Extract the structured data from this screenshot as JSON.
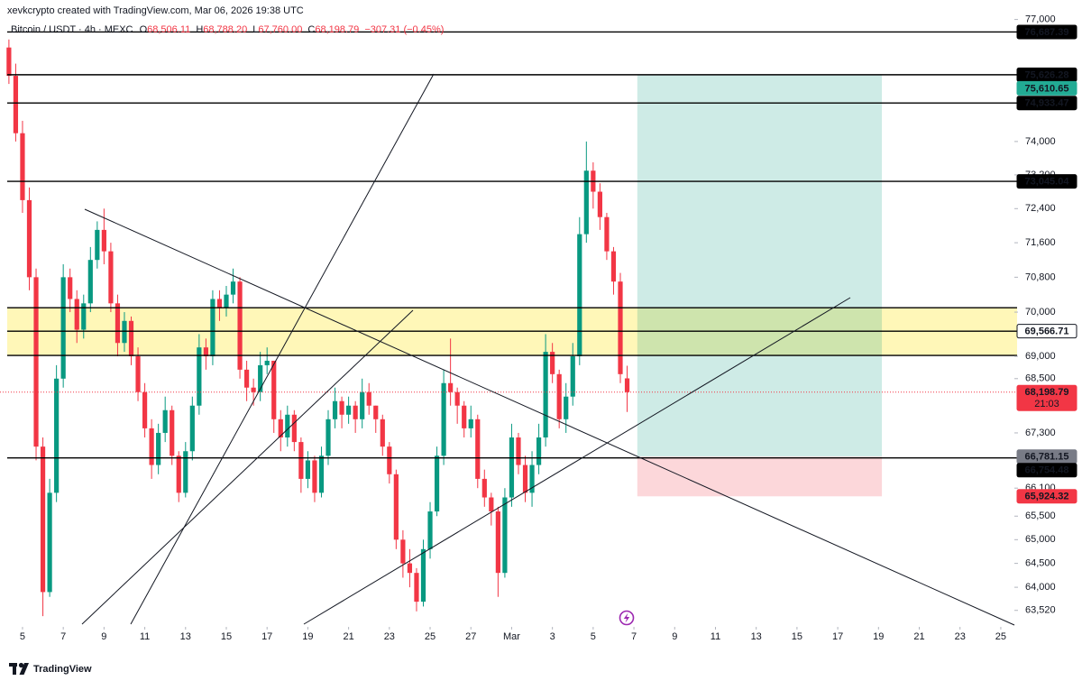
{
  "header": "xevkcrypto created with TradingView.com, Mar 06, 2026 19:38 UTC",
  "brand": "TradingView",
  "chart_data": {
    "type": "candlestick",
    "legend": {
      "symbol": "Bitcoin / USDT · 4h · MEXC",
      "ohlc": [
        {
          "key": "O",
          "value": "68,506.11"
        },
        {
          "key": "H",
          "value": "68,788.20"
        },
        {
          "key": "L",
          "value": "67,760.00"
        },
        {
          "key": "C",
          "value": "68,198.79"
        }
      ],
      "change": "−307.31 (−0.45%)"
    },
    "colors": {
      "up": "#089981",
      "down": "#f23645"
    },
    "log": true,
    "xlim": [
      -26.5,
      1168
    ],
    "ylim": [
      63180,
      77490
    ],
    "xticks": [
      {
        "value": 0,
        "label": "5"
      },
      {
        "value": 48,
        "label": "7"
      },
      {
        "value": 96,
        "label": "9"
      },
      {
        "value": 144,
        "label": "11"
      },
      {
        "value": 192,
        "label": "13"
      },
      {
        "value": 240,
        "label": "15"
      },
      {
        "value": 288,
        "label": "17"
      },
      {
        "value": 336,
        "label": "19"
      },
      {
        "value": 384,
        "label": "21"
      },
      {
        "value": 432,
        "label": "23"
      },
      {
        "value": 480,
        "label": "25"
      },
      {
        "value": 528,
        "label": "27"
      },
      {
        "value": 576,
        "label": "Mar"
      },
      {
        "value": 624,
        "label": "3"
      },
      {
        "value": 672,
        "label": "5"
      },
      {
        "value": 720,
        "label": "7"
      },
      {
        "value": 768,
        "label": "9"
      },
      {
        "value": 816,
        "label": "11"
      },
      {
        "value": 864,
        "label": "13"
      },
      {
        "value": 912,
        "label": "15"
      },
      {
        "value": 960,
        "label": "17"
      },
      {
        "value": 1008,
        "label": "19"
      },
      {
        "value": 1056,
        "label": "21"
      },
      {
        "value": 1104,
        "label": "23"
      },
      {
        "value": 1152,
        "label": "25"
      }
    ],
    "yticks": [
      {
        "value": 77000,
        "label": "77,000"
      },
      {
        "value": 74000,
        "label": "74,000"
      },
      {
        "value": 73200,
        "label": "73,200"
      },
      {
        "value": 72400,
        "label": "72,400"
      },
      {
        "value": 71600,
        "label": "71,600"
      },
      {
        "value": 70800,
        "label": "70,800"
      },
      {
        "value": 70000,
        "label": "70,000"
      },
      {
        "value": 69000,
        "label": "69,000"
      },
      {
        "value": 68500,
        "label": "68,500"
      },
      {
        "value": 67300,
        "label": "67,300"
      },
      {
        "value": 66100,
        "label": "66,100"
      },
      {
        "value": 65500,
        "label": "65,500"
      },
      {
        "value": 65000,
        "label": "65,000"
      },
      {
        "value": 64500,
        "label": "64,500"
      },
      {
        "value": 64000,
        "label": "64,000"
      },
      {
        "value": 63520,
        "label": "63,520"
      }
    ],
    "x": [
      -16,
      -8,
      0,
      8,
      16,
      24,
      32,
      40,
      48,
      56,
      64,
      72,
      80,
      88,
      96,
      104,
      112,
      120,
      128,
      136,
      144,
      152,
      160,
      168,
      176,
      184,
      192,
      200,
      208,
      216,
      224,
      232,
      240,
      248,
      256,
      264,
      272,
      280,
      288,
      296,
      304,
      312,
      320,
      328,
      336,
      344,
      352,
      360,
      368,
      376,
      384,
      392,
      400,
      408,
      416,
      424,
      432,
      440,
      448,
      456,
      464,
      472,
      480,
      488,
      496,
      504,
      512,
      520,
      528,
      536,
      544,
      552,
      560,
      568,
      576,
      584,
      592,
      600,
      608,
      616,
      624,
      632,
      640,
      648,
      656,
      664,
      672,
      680,
      688,
      696,
      704,
      712
    ],
    "open": [
      76300,
      75600,
      74200,
      72600,
      70800,
      67000,
      63900,
      66000,
      68500,
      70800,
      70300,
      69600,
      70200,
      71200,
      71900,
      71400,
      70200,
      69300,
      69800,
      69000,
      68200,
      67400,
      66600,
      67300,
      67800,
      66800,
      66000,
      66900,
      67900,
      69200,
      69000,
      70300,
      70100,
      70400,
      70700,
      68700,
      68300,
      68200,
      68800,
      68900,
      67600,
      67200,
      67700,
      67100,
      66300,
      66700,
      66000,
      66800,
      67600,
      68000,
      67700,
      67900,
      67600,
      68200,
      67900,
      67600,
      67000,
      66400,
      65000,
      64500,
      64300,
      63700,
      64800,
      65600,
      66800,
      68400,
      68200,
      67900,
      67400,
      67600,
      66300,
      65900,
      65600,
      64300,
      65900,
      67200,
      66600,
      66000,
      66600,
      67200,
      69100,
      68600,
      67600,
      68100,
      69000,
      71800,
      73300,
      72800,
      72200,
      71400,
      70700,
      68506.11
    ],
    "high": [
      76500,
      75900,
      74500,
      72900,
      71000,
      67200,
      66300,
      68800,
      71100,
      71000,
      70500,
      70400,
      71500,
      72100,
      72400,
      71600,
      70400,
      70000,
      69900,
      69200,
      68400,
      67600,
      67500,
      68100,
      67900,
      66900,
      67100,
      68100,
      69500,
      69400,
      70500,
      70500,
      70600,
      71000,
      70800,
      68900,
      68500,
      69100,
      69200,
      68900,
      67800,
      67900,
      67800,
      67200,
      66900,
      66800,
      67000,
      67800,
      68300,
      68100,
      68100,
      68000,
      68500,
      68400,
      67900,
      67700,
      67100,
      66500,
      65200,
      64800,
      64400,
      65000,
      65800,
      67000,
      68700,
      69400,
      68300,
      68000,
      67900,
      67700,
      66500,
      66000,
      65700,
      66100,
      67500,
      67300,
      66800,
      66900,
      67500,
      69500,
      69300,
      68700,
      68400,
      69300,
      72200,
      74000,
      73500,
      73000,
      72300,
      71500,
      70900,
      68788.2
    ],
    "low": [
      75400,
      74000,
      72300,
      70500,
      66700,
      63400,
      63800,
      65800,
      68300,
      70000,
      69300,
      69400,
      70000,
      71000,
      71100,
      70000,
      69000,
      69100,
      68800,
      68000,
      67200,
      66300,
      66400,
      67100,
      66600,
      65800,
      65900,
      66700,
      67700,
      68700,
      68800,
      69800,
      69900,
      70200,
      68500,
      68000,
      67900,
      68000,
      68600,
      67300,
      66900,
      67000,
      66900,
      66000,
      66100,
      65800,
      65900,
      66600,
      67400,
      67400,
      67500,
      67300,
      67400,
      67700,
      67300,
      66800,
      66200,
      64800,
      64200,
      64000,
      63500,
      63600,
      64600,
      65500,
      66600,
      67900,
      67500,
      67200,
      67200,
      66100,
      65700,
      65300,
      63800,
      64200,
      65700,
      66400,
      65800,
      65700,
      66400,
      67000,
      68400,
      67400,
      67300,
      67900,
      68800,
      71600,
      72400,
      71900,
      71200,
      70400,
      68400,
      67760.0
    ],
    "close": [
      75600,
      74200,
      72600,
      70800,
      67000,
      63900,
      66000,
      68500,
      70800,
      70300,
      69600,
      70200,
      71200,
      71900,
      71400,
      70200,
      69300,
      69800,
      69000,
      68200,
      67400,
      66600,
      67300,
      67800,
      66800,
      66000,
      66900,
      67900,
      69200,
      69000,
      70300,
      70100,
      70400,
      70700,
      68700,
      68300,
      68200,
      68800,
      68900,
      67600,
      67200,
      67700,
      67100,
      66300,
      66700,
      66000,
      66800,
      67600,
      68000,
      67700,
      67900,
      67600,
      68200,
      67900,
      67600,
      67000,
      66400,
      65000,
      64500,
      64300,
      63700,
      64800,
      65600,
      66800,
      68400,
      68200,
      67900,
      67400,
      67600,
      66300,
      65900,
      65600,
      64300,
      65900,
      67200,
      66600,
      66000,
      66600,
      67200,
      69100,
      68600,
      67600,
      68100,
      69000,
      71800,
      73300,
      72800,
      72200,
      71400,
      70700,
      68600,
      68198.79
    ],
    "zone": {
      "top": 70100,
      "bottom": 69020,
      "color": "#fff7b8"
    },
    "levels": [
      {
        "value": 76687.39,
        "label": "76,687.39",
        "box": "#000000"
      },
      {
        "value": 75626.28,
        "label": "75,626.28",
        "box": "#000000"
      },
      {
        "value": 74933.47,
        "label": "74,933.47",
        "box": "#000000"
      },
      {
        "value": 73045.04,
        "label": "73,045.04",
        "box": "#000000"
      },
      {
        "value": 69566.71,
        "label": "69,566.71",
        "box": "#ffffff"
      },
      {
        "value": 66754.48,
        "label": "66,754.48",
        "box": "#000000"
      }
    ],
    "position": {
      "start": 724,
      "end": 1012,
      "entry": {
        "value": 66781.15,
        "label": "66,781.15",
        "box": "#787b86"
      },
      "target": {
        "value": 75610.65,
        "label": "75,610.65",
        "box": "#22ab94"
      },
      "stop": {
        "value": 65924.32,
        "label": "65,924.32",
        "box": "#f23645"
      }
    },
    "last_price": {
      "value": 68198.79,
      "label": "68,198.79",
      "countdown": "21:03",
      "box": "#f23645"
    }
  }
}
